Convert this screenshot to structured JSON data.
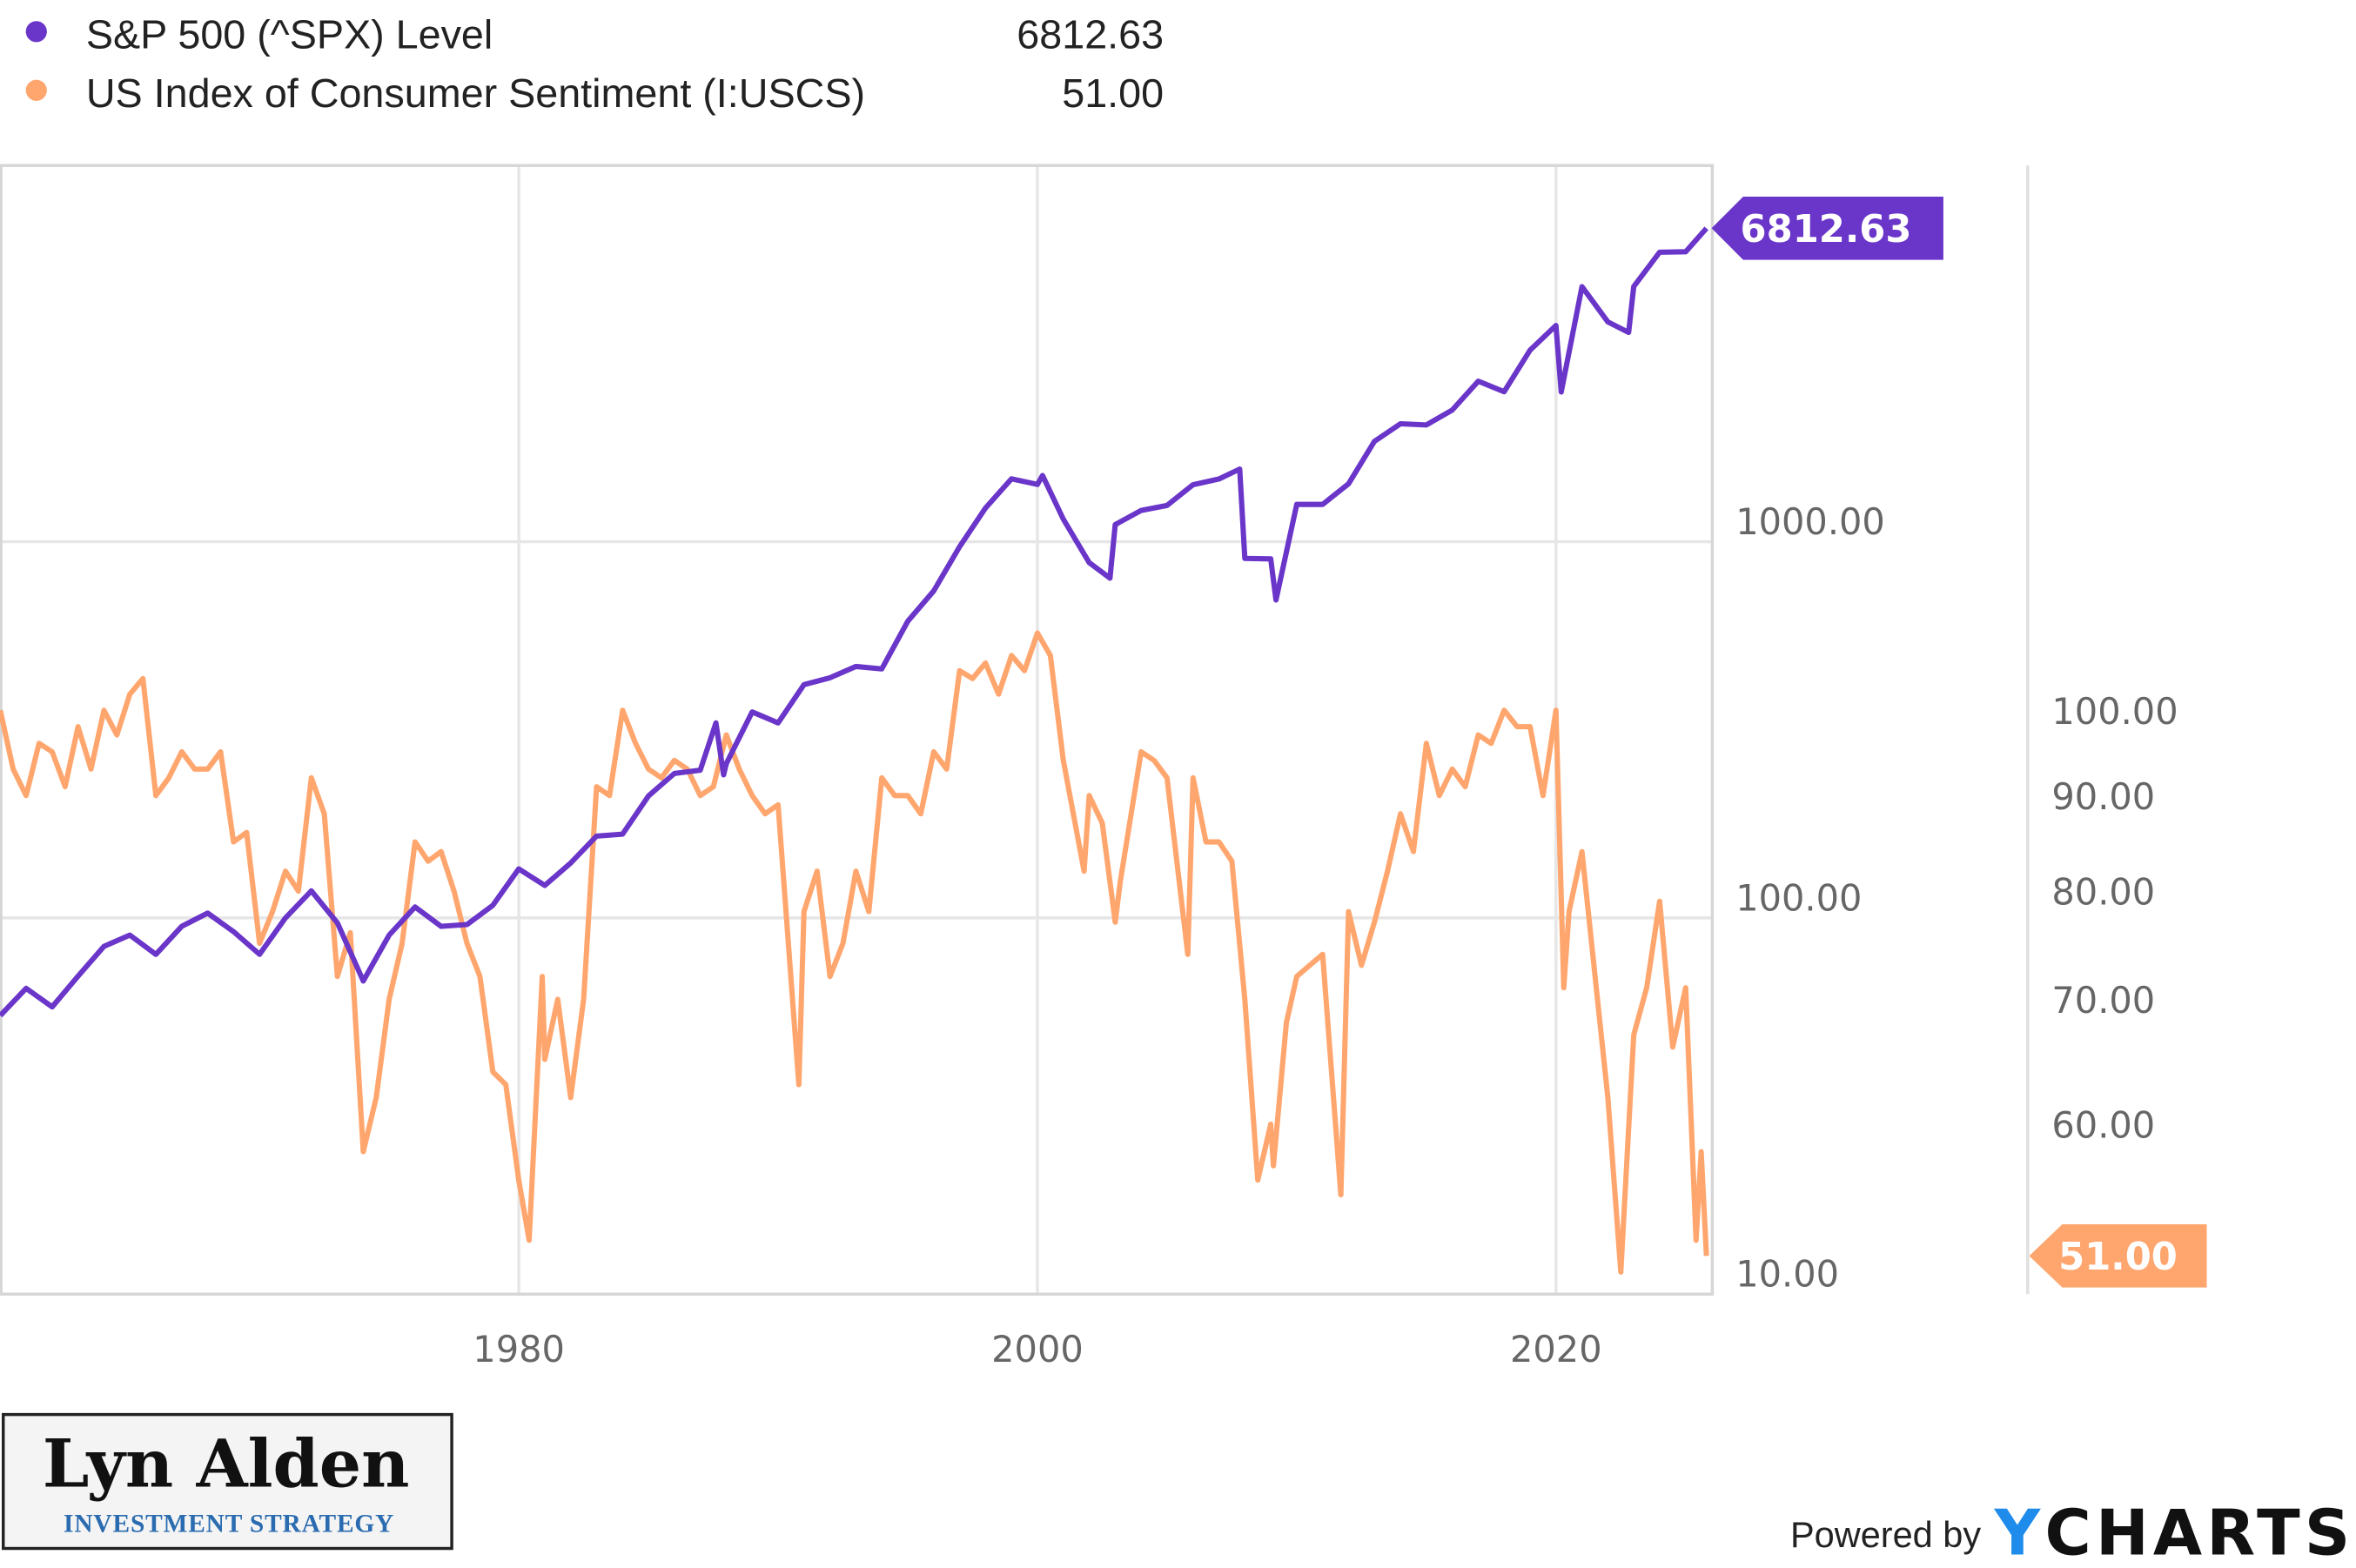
{
  "colors": {
    "spx": "#6a35c9",
    "uscs": "#ffa66e",
    "grid": "#e6e6e6",
    "axis": "#cccccc"
  },
  "legend": [
    {
      "label": "S&P 500 (^SPX) Level",
      "value": "6812.63"
    },
    {
      "label": "US Index of Consumer Sentiment (I:USCS)",
      "value": "51.00"
    }
  ],
  "logo": {
    "name": "Lyn Alden",
    "tagline": "INVESTMENT STRATEGY"
  },
  "footer": {
    "powered_by": "Powered by",
    "brand": "YCHARTS"
  },
  "chart_data": {
    "type": "line",
    "title": "",
    "xlabel": "",
    "ylabel": "",
    "x_ticks": [
      "1980",
      "2000",
      "2020"
    ],
    "xlim": [
      1960,
      2026
    ],
    "left_axis": {
      "scale": "log",
      "ticks": [
        "10.00",
        "100.00",
        "1000.00"
      ],
      "tick_values": [
        10,
        100,
        1000
      ],
      "ylim": [
        10,
        20000
      ]
    },
    "right_axis": {
      "scale": "log",
      "ticks": [
        "100.00",
        "90.00",
        "80.00",
        "70.00",
        "60.00"
      ],
      "tick_values": [
        100,
        90,
        80,
        70,
        60
      ],
      "ylim": [
        48.7,
        195
      ]
    },
    "grid": true,
    "series": [
      {
        "name": "S&P 500 (^SPX) Level",
        "axis": "left",
        "last_label": "6812.63",
        "x": [
          1960,
          1961,
          1962,
          1963,
          1964,
          1965,
          1966,
          1967,
          1968,
          1969,
          1970,
          1971,
          1972,
          1973,
          1974,
          1975,
          1976,
          1977,
          1978,
          1979,
          1980,
          1981,
          1982,
          1983,
          1984,
          1985,
          1986,
          1987,
          1987.6,
          1987.9,
          1988,
          1989,
          1990,
          1991,
          1992,
          1993,
          1994,
          1995,
          1996,
          1997,
          1998,
          1999,
          2000,
          2000.2,
          2001,
          2002,
          2002.8,
          2003,
          2004,
          2005,
          2006,
          2007,
          2007.8,
          2008,
          2009,
          2009.2,
          2010,
          2011,
          2012,
          2013,
          2014,
          2015,
          2016,
          2017,
          2018,
          2019,
          2020,
          2020.2,
          2021,
          2022,
          2022.8,
          2023,
          2024,
          2025,
          2025.8
        ],
        "values": [
          55,
          65,
          58,
          70,
          84,
          90,
          80,
          95,
          103,
          92,
          80,
          100,
          118,
          97,
          68,
          90,
          107,
          95,
          96,
          108,
          135,
          122,
          140,
          165,
          167,
          211,
          242,
          247,
          330,
          240,
          257,
          353,
          330,
          417,
          435,
          466,
          459,
          615,
          740,
          970,
          1229,
          1469,
          1420,
          1500,
          1148,
          880,
          800,
          1111,
          1211,
          1248,
          1418,
          1468,
          1560,
          903,
          900,
          700,
          1257,
          1257,
          1426,
          1848,
          2058,
          2043,
          2238,
          2673,
          2506,
          3230,
          3756,
          2500,
          4766,
          3839,
          3600,
          4769,
          5881,
          5900,
          6812.63
        ]
      },
      {
        "name": "US Index of Consumer Sentiment (I:USCS)",
        "axis": "right",
        "last_label": "51.00",
        "x": [
          1960,
          1960.5,
          1961,
          1961.5,
          1962,
          1962.5,
          1963,
          1963.5,
          1964,
          1964.5,
          1965,
          1965.5,
          1966,
          1966.5,
          1967,
          1967.5,
          1968,
          1968.5,
          1969,
          1969.5,
          1970,
          1970.5,
          1971,
          1971.5,
          1972,
          1972.5,
          1973,
          1973.5,
          1974,
          1974.5,
          1975,
          1975.5,
          1976,
          1976.5,
          1977,
          1977.5,
          1978,
          1978.5,
          1979,
          1979.5,
          1980,
          1980.4,
          1980.9,
          1981,
          1981.5,
          1982,
          1982.5,
          1983,
          1983.5,
          1984,
          1984.5,
          1985,
          1985.5,
          1986,
          1986.5,
          1987,
          1987.5,
          1988,
          1988.5,
          1989,
          1989.5,
          1990,
          1990.8,
          1991,
          1991.5,
          1992,
          1992.5,
          1993,
          1993.5,
          1994,
          1994.5,
          1995,
          1995.5,
          1996,
          1996.5,
          1997,
          1997.5,
          1998,
          1998.5,
          1999,
          1999.5,
          2000,
          2000.5,
          2001,
          2001.8,
          2002,
          2002.5,
          2003,
          2003.2,
          2004,
          2004.5,
          2005,
          2005.8,
          2006,
          2006.5,
          2007,
          2007.5,
          2008,
          2008.5,
          2009,
          2009.1,
          2009.6,
          2010,
          2010.5,
          2011,
          2011.7,
          2012,
          2012.5,
          2013,
          2013.5,
          2014,
          2014.5,
          2015,
          2015.5,
          2016,
          2016.5,
          2017,
          2017.5,
          2018,
          2018.5,
          2019,
          2019.5,
          2020,
          2020.3,
          2020.5,
          2021,
          2021.6,
          2022,
          2022.5,
          2023,
          2023.5,
          2024,
          2024.5,
          2025,
          2025.4,
          2025.6,
          2025.8
        ],
        "values": [
          100,
          93,
          90,
          96,
          95,
          91,
          98,
          93,
          100,
          97,
          102,
          104,
          90,
          92,
          95,
          93,
          93,
          95,
          85,
          86,
          75,
          78,
          82,
          80,
          92,
          88,
          72,
          76,
          58,
          62,
          70,
          75,
          85,
          83,
          84,
          80,
          75,
          72,
          64,
          63,
          56,
          52,
          72,
          65,
          70,
          62,
          70,
          91,
          90,
          100,
          96,
          93,
          92,
          94,
          93,
          90,
          91,
          97,
          93,
          90,
          88,
          89,
          63,
          78,
          82,
          72,
          75,
          82,
          78,
          92,
          90,
          90,
          88,
          95,
          93,
          105,
          104,
          106,
          102,
          107,
          105,
          110,
          107,
          94,
          82,
          90,
          87,
          77,
          81,
          95,
          94,
          92,
          74,
          92,
          85,
          85,
          83,
          70,
          56,
          60,
          57,
          68,
          72,
          73,
          74,
          55,
          78,
          73,
          77,
          82,
          88,
          84,
          96,
          90,
          93,
          91,
          97,
          96,
          100,
          98,
          98,
          90,
          100,
          71,
          78,
          84,
          70,
          62,
          50,
          67,
          71,
          79,
          66,
          71,
          52,
          58,
          51
        ]
      }
    ]
  }
}
